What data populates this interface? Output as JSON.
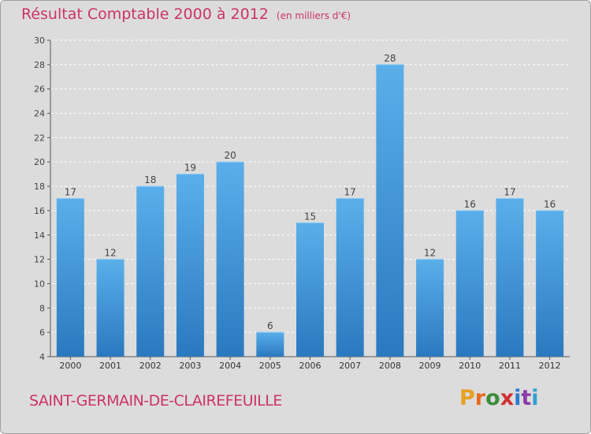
{
  "header": {
    "title": "Résultat Comptable 2000 à 2012",
    "unit": "(en milliers d'€)"
  },
  "footer": {
    "commune": "SAINT-GERMAIN-DE-CLAIREFEUILLE",
    "logo": "Proxiti",
    "logo_colors": [
      "#e8a020",
      "#e86a20",
      "#3c8c3c",
      "#d03030",
      "#2a7bd0",
      "#8c3ca8",
      "#30a0d0"
    ]
  },
  "colors": {
    "title": "#cc3366",
    "bar_top": "#5aafea",
    "bar_bottom": "#2a79c0",
    "background": "#dcdcdc",
    "plot_background": "#dcdcdc"
  },
  "chart_data": {
    "type": "bar",
    "title": "Résultat Comptable 2000 à 2012",
    "xlabel": "",
    "ylabel": "",
    "categories": [
      "2000",
      "2001",
      "2002",
      "2003",
      "2004",
      "2005",
      "2006",
      "2007",
      "2008",
      "2009",
      "2010",
      "2011",
      "2012"
    ],
    "values": [
      17,
      12,
      18,
      19,
      20,
      6,
      15,
      17,
      28,
      12,
      16,
      17,
      16
    ],
    "ylim": [
      4,
      30
    ],
    "yticks": [
      4,
      6,
      8,
      10,
      12,
      14,
      16,
      18,
      20,
      22,
      24,
      26,
      28,
      30
    ],
    "grid": true
  }
}
